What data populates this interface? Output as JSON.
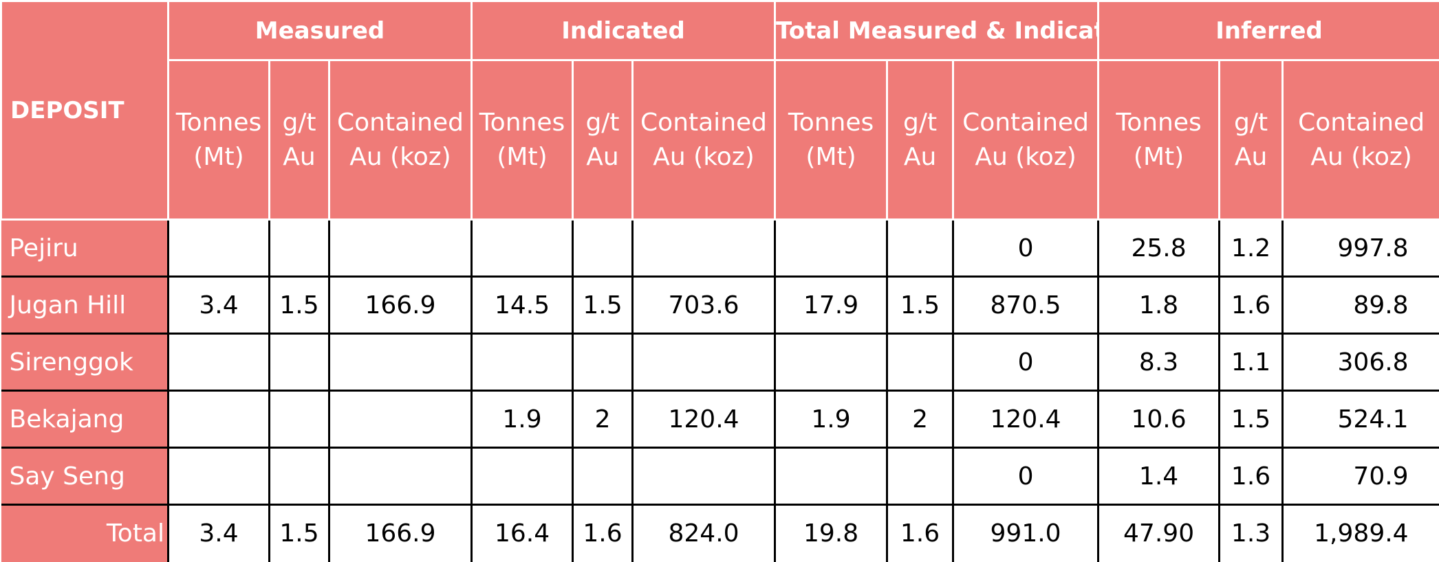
{
  "header": {
    "deposit_label": "DEPOSIT",
    "groups": [
      "Measured",
      "Indicated",
      "Total Measured & Indicated",
      "Inferred"
    ],
    "subcolumns": {
      "tonnes": [
        "Tonnes",
        "(Mt)"
      ],
      "grade": [
        "g/t",
        "Au"
      ],
      "contained": [
        "Contained",
        "Au (koz)"
      ]
    }
  },
  "rows": [
    {
      "name": "Pejiru",
      "cells": [
        "",
        "",
        "",
        "",
        "",
        "",
        "",
        "",
        "0",
        "25.8",
        "1.2",
        "997.8"
      ]
    },
    {
      "name": "Jugan Hill",
      "cells": [
        "3.4",
        "1.5",
        "166.9",
        "14.5",
        "1.5",
        "703.6",
        "17.9",
        "1.5",
        "870.5",
        "1.8",
        "1.6",
        "89.8"
      ]
    },
    {
      "name": "Sirenggok",
      "cells": [
        "",
        "",
        "",
        "",
        "",
        "",
        "",
        "",
        "0",
        "8.3",
        "1.1",
        "306.8"
      ]
    },
    {
      "name": "Bekajang",
      "cells": [
        "",
        "",
        "",
        "1.9",
        "2",
        "120.4",
        "1.9",
        "2",
        "120.4",
        "10.6",
        "1.5",
        "524.1"
      ]
    },
    {
      "name": "Say Seng",
      "cells": [
        "",
        "",
        "",
        "",
        "",
        "",
        "",
        "",
        "0",
        "1.4",
        "1.6",
        "70.9"
      ]
    },
    {
      "name": "Total",
      "cells": [
        "3.4",
        "1.5",
        "166.9",
        "16.4",
        "1.6",
        "824.0",
        "19.8",
        "1.6",
        "991.0",
        "47.90",
        "1.3",
        "1,989.4"
      ]
    }
  ]
}
